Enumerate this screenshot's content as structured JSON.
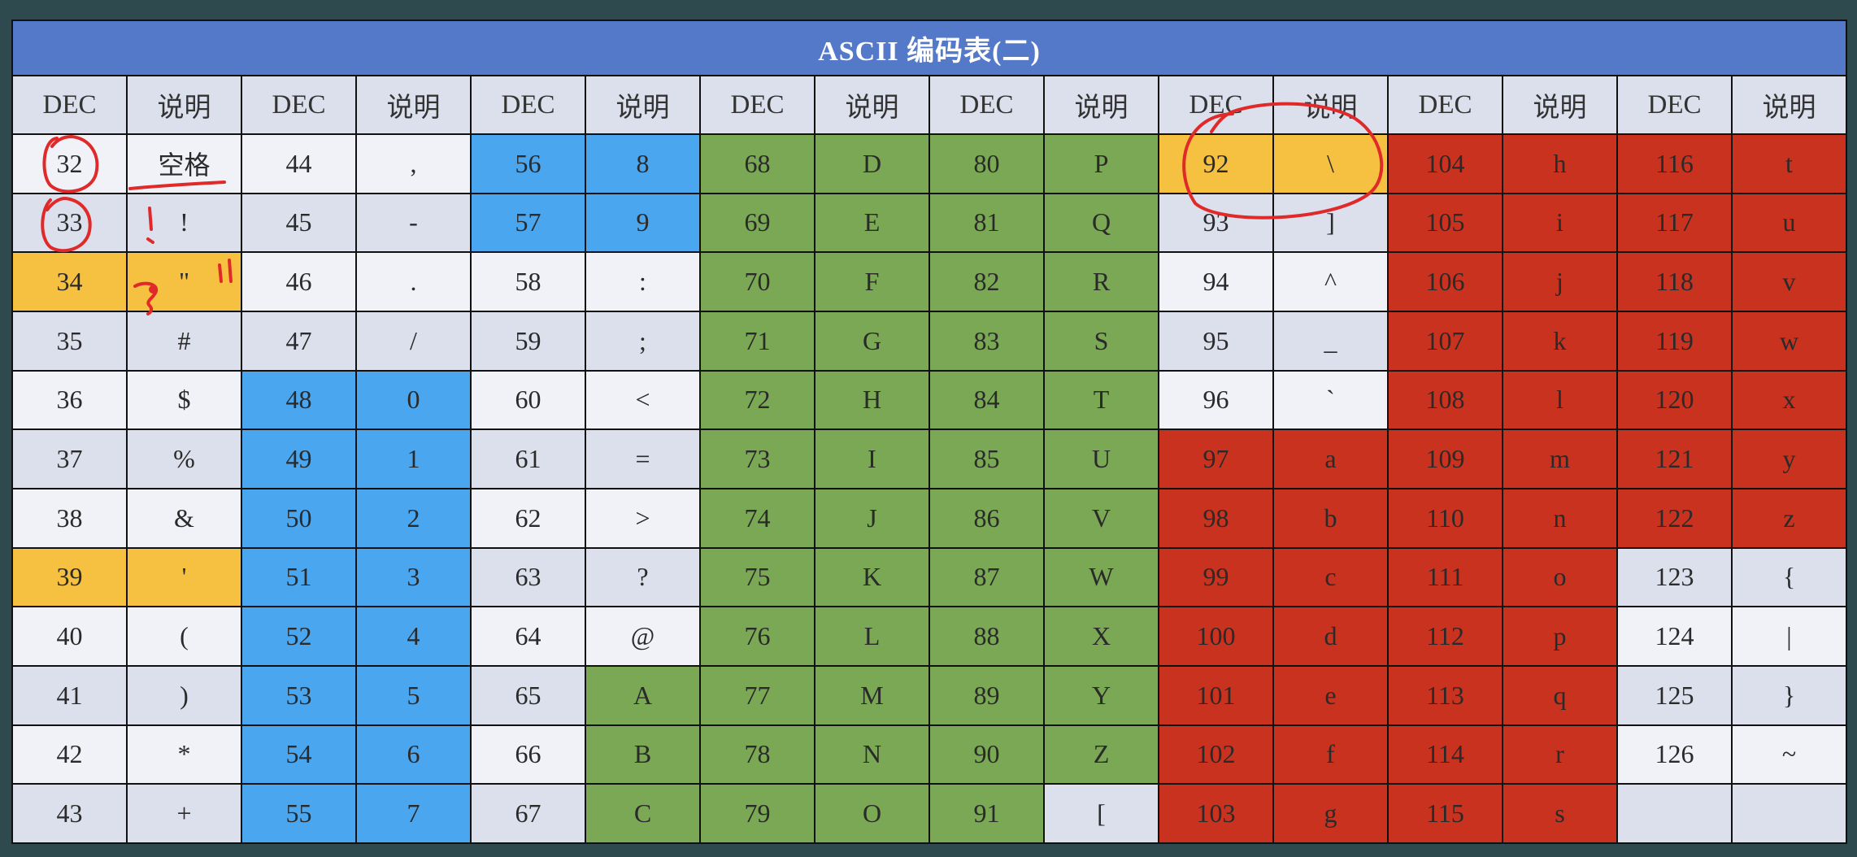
{
  "title": "ASCII 编码表(二)",
  "headers": [
    "DEC",
    "说明",
    "DEC",
    "说明",
    "DEC",
    "说明",
    "DEC",
    "说明",
    "DEC",
    "说明",
    "DEC",
    "说明",
    "DEC",
    "说明",
    "DEC",
    "说明"
  ],
  "colors": {
    "title_bar": "#5479c9",
    "header": "#dcdfec",
    "light": "#f1f2f8",
    "lavender": "#dcdfec",
    "blue": "#4aa6ef",
    "green": "#7aa854",
    "yellow": "#f6c040",
    "red": "#c8321e",
    "annotation_ink": "#e02a2a",
    "background": "#2f4a4f"
  },
  "rows": [
    [
      {
        "v": "32",
        "c": "light"
      },
      {
        "v": "空格",
        "c": "light"
      },
      {
        "v": "44",
        "c": "light"
      },
      {
        "v": ",",
        "c": "light"
      },
      {
        "v": "56",
        "c": "blue"
      },
      {
        "v": "8",
        "c": "blue"
      },
      {
        "v": "68",
        "c": "green"
      },
      {
        "v": "D",
        "c": "green"
      },
      {
        "v": "80",
        "c": "green"
      },
      {
        "v": "P",
        "c": "green"
      },
      {
        "v": "92",
        "c": "yellow"
      },
      {
        "v": "\\",
        "c": "yellow"
      },
      {
        "v": "104",
        "c": "red"
      },
      {
        "v": "h",
        "c": "red"
      },
      {
        "v": "116",
        "c": "red"
      },
      {
        "v": "t",
        "c": "red"
      }
    ],
    [
      {
        "v": "33",
        "c": "lavender"
      },
      {
        "v": "!",
        "c": "lavender"
      },
      {
        "v": "45",
        "c": "lavender"
      },
      {
        "v": "-",
        "c": "lavender"
      },
      {
        "v": "57",
        "c": "blue"
      },
      {
        "v": "9",
        "c": "blue"
      },
      {
        "v": "69",
        "c": "green"
      },
      {
        "v": "E",
        "c": "green"
      },
      {
        "v": "81",
        "c": "green"
      },
      {
        "v": "Q",
        "c": "green"
      },
      {
        "v": "93",
        "c": "lavender"
      },
      {
        "v": "]",
        "c": "lavender"
      },
      {
        "v": "105",
        "c": "red"
      },
      {
        "v": "i",
        "c": "red"
      },
      {
        "v": "117",
        "c": "red"
      },
      {
        "v": "u",
        "c": "red"
      }
    ],
    [
      {
        "v": "34",
        "c": "yellow"
      },
      {
        "v": "\"",
        "c": "yellow"
      },
      {
        "v": "46",
        "c": "light"
      },
      {
        "v": ".",
        "c": "light"
      },
      {
        "v": "58",
        "c": "light"
      },
      {
        "v": ":",
        "c": "light"
      },
      {
        "v": "70",
        "c": "green"
      },
      {
        "v": "F",
        "c": "green"
      },
      {
        "v": "82",
        "c": "green"
      },
      {
        "v": "R",
        "c": "green"
      },
      {
        "v": "94",
        "c": "light"
      },
      {
        "v": "^",
        "c": "light"
      },
      {
        "v": "106",
        "c": "red"
      },
      {
        "v": "j",
        "c": "red"
      },
      {
        "v": "118",
        "c": "red"
      },
      {
        "v": "v",
        "c": "red"
      }
    ],
    [
      {
        "v": "35",
        "c": "lavender"
      },
      {
        "v": "#",
        "c": "lavender"
      },
      {
        "v": "47",
        "c": "lavender"
      },
      {
        "v": "/",
        "c": "lavender"
      },
      {
        "v": "59",
        "c": "lavender"
      },
      {
        "v": ";",
        "c": "lavender"
      },
      {
        "v": "71",
        "c": "green"
      },
      {
        "v": "G",
        "c": "green"
      },
      {
        "v": "83",
        "c": "green"
      },
      {
        "v": "S",
        "c": "green"
      },
      {
        "v": "95",
        "c": "lavender"
      },
      {
        "v": "_",
        "c": "lavender"
      },
      {
        "v": "107",
        "c": "red"
      },
      {
        "v": "k",
        "c": "red"
      },
      {
        "v": "119",
        "c": "red"
      },
      {
        "v": "w",
        "c": "red"
      }
    ],
    [
      {
        "v": "36",
        "c": "light"
      },
      {
        "v": "$",
        "c": "light"
      },
      {
        "v": "48",
        "c": "blue"
      },
      {
        "v": "0",
        "c": "blue"
      },
      {
        "v": "60",
        "c": "light"
      },
      {
        "v": "<",
        "c": "light"
      },
      {
        "v": "72",
        "c": "green"
      },
      {
        "v": "H",
        "c": "green"
      },
      {
        "v": "84",
        "c": "green"
      },
      {
        "v": "T",
        "c": "green"
      },
      {
        "v": "96",
        "c": "light"
      },
      {
        "v": "`",
        "c": "light"
      },
      {
        "v": "108",
        "c": "red"
      },
      {
        "v": "l",
        "c": "red"
      },
      {
        "v": "120",
        "c": "red"
      },
      {
        "v": "x",
        "c": "red"
      }
    ],
    [
      {
        "v": "37",
        "c": "lavender"
      },
      {
        "v": "%",
        "c": "lavender"
      },
      {
        "v": "49",
        "c": "blue"
      },
      {
        "v": "1",
        "c": "blue"
      },
      {
        "v": "61",
        "c": "lavender"
      },
      {
        "v": "=",
        "c": "lavender"
      },
      {
        "v": "73",
        "c": "green"
      },
      {
        "v": "I",
        "c": "green"
      },
      {
        "v": "85",
        "c": "green"
      },
      {
        "v": "U",
        "c": "green"
      },
      {
        "v": "97",
        "c": "red"
      },
      {
        "v": "a",
        "c": "red"
      },
      {
        "v": "109",
        "c": "red"
      },
      {
        "v": "m",
        "c": "red"
      },
      {
        "v": "121",
        "c": "red"
      },
      {
        "v": "y",
        "c": "red"
      }
    ],
    [
      {
        "v": "38",
        "c": "light"
      },
      {
        "v": "&",
        "c": "light"
      },
      {
        "v": "50",
        "c": "blue"
      },
      {
        "v": "2",
        "c": "blue"
      },
      {
        "v": "62",
        "c": "light"
      },
      {
        "v": ">",
        "c": "light"
      },
      {
        "v": "74",
        "c": "green"
      },
      {
        "v": "J",
        "c": "green"
      },
      {
        "v": "86",
        "c": "green"
      },
      {
        "v": "V",
        "c": "green"
      },
      {
        "v": "98",
        "c": "red"
      },
      {
        "v": "b",
        "c": "red"
      },
      {
        "v": "110",
        "c": "red"
      },
      {
        "v": "n",
        "c": "red"
      },
      {
        "v": "122",
        "c": "red"
      },
      {
        "v": "z",
        "c": "red"
      }
    ],
    [
      {
        "v": "39",
        "c": "yellow"
      },
      {
        "v": "'",
        "c": "yellow"
      },
      {
        "v": "51",
        "c": "blue"
      },
      {
        "v": "3",
        "c": "blue"
      },
      {
        "v": "63",
        "c": "lavender"
      },
      {
        "v": "?",
        "c": "lavender"
      },
      {
        "v": "75",
        "c": "green"
      },
      {
        "v": "K",
        "c": "green"
      },
      {
        "v": "87",
        "c": "green"
      },
      {
        "v": "W",
        "c": "green"
      },
      {
        "v": "99",
        "c": "red"
      },
      {
        "v": "c",
        "c": "red"
      },
      {
        "v": "111",
        "c": "red"
      },
      {
        "v": "o",
        "c": "red"
      },
      {
        "v": "123",
        "c": "lavender"
      },
      {
        "v": "{",
        "c": "lavender"
      }
    ],
    [
      {
        "v": "40",
        "c": "light"
      },
      {
        "v": "(",
        "c": "light"
      },
      {
        "v": "52",
        "c": "blue"
      },
      {
        "v": "4",
        "c": "blue"
      },
      {
        "v": "64",
        "c": "light"
      },
      {
        "v": "@",
        "c": "light"
      },
      {
        "v": "76",
        "c": "green"
      },
      {
        "v": "L",
        "c": "green"
      },
      {
        "v": "88",
        "c": "green"
      },
      {
        "v": "X",
        "c": "green"
      },
      {
        "v": "100",
        "c": "red"
      },
      {
        "v": "d",
        "c": "red"
      },
      {
        "v": "112",
        "c": "red"
      },
      {
        "v": "p",
        "c": "red"
      },
      {
        "v": "124",
        "c": "light"
      },
      {
        "v": "|",
        "c": "light"
      }
    ],
    [
      {
        "v": "41",
        "c": "lavender"
      },
      {
        "v": ")",
        "c": "lavender"
      },
      {
        "v": "53",
        "c": "blue"
      },
      {
        "v": "5",
        "c": "blue"
      },
      {
        "v": "65",
        "c": "lavender"
      },
      {
        "v": "A",
        "c": "green"
      },
      {
        "v": "77",
        "c": "green"
      },
      {
        "v": "M",
        "c": "green"
      },
      {
        "v": "89",
        "c": "green"
      },
      {
        "v": "Y",
        "c": "green"
      },
      {
        "v": "101",
        "c": "red"
      },
      {
        "v": "e",
        "c": "red"
      },
      {
        "v": "113",
        "c": "red"
      },
      {
        "v": "q",
        "c": "red"
      },
      {
        "v": "125",
        "c": "lavender"
      },
      {
        "v": "}",
        "c": "lavender"
      }
    ],
    [
      {
        "v": "42",
        "c": "light"
      },
      {
        "v": "*",
        "c": "light"
      },
      {
        "v": "54",
        "c": "blue"
      },
      {
        "v": "6",
        "c": "blue"
      },
      {
        "v": "66",
        "c": "light"
      },
      {
        "v": "B",
        "c": "green"
      },
      {
        "v": "78",
        "c": "green"
      },
      {
        "v": "N",
        "c": "green"
      },
      {
        "v": "90",
        "c": "green"
      },
      {
        "v": "Z",
        "c": "green"
      },
      {
        "v": "102",
        "c": "red"
      },
      {
        "v": "f",
        "c": "red"
      },
      {
        "v": "114",
        "c": "red"
      },
      {
        "v": "r",
        "c": "red"
      },
      {
        "v": "126",
        "c": "light"
      },
      {
        "v": "~",
        "c": "light"
      }
    ],
    [
      {
        "v": "43",
        "c": "lavender"
      },
      {
        "v": "+",
        "c": "lavender"
      },
      {
        "v": "55",
        "c": "blue"
      },
      {
        "v": "7",
        "c": "blue"
      },
      {
        "v": "67",
        "c": "lavender"
      },
      {
        "v": "C",
        "c": "green"
      },
      {
        "v": "79",
        "c": "green"
      },
      {
        "v": "O",
        "c": "green"
      },
      {
        "v": "91",
        "c": "green"
      },
      {
        "v": "[",
        "c": "lavender"
      },
      {
        "v": "103",
        "c": "red"
      },
      {
        "v": "g",
        "c": "red"
      },
      {
        "v": "115",
        "c": "red"
      },
      {
        "v": "s",
        "c": "red"
      },
      {
        "v": "",
        "c": "empty"
      },
      {
        "v": "",
        "c": "empty"
      }
    ]
  ]
}
